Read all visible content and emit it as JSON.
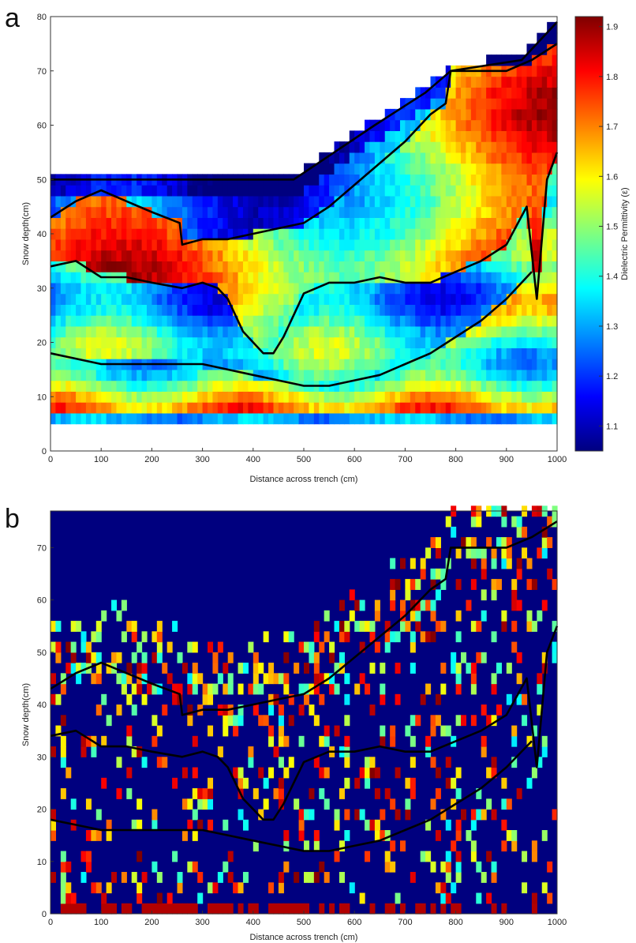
{
  "chart_data": [
    {
      "panel": "a",
      "type": "heatmap",
      "xlabel": "Distance across trench (cm)",
      "ylabel": "Snow depth(cm)",
      "xlim": [
        0,
        1000
      ],
      "ylim": [
        0,
        80
      ],
      "xticks": [
        0,
        100,
        200,
        300,
        400,
        500,
        600,
        700,
        800,
        900,
        1000
      ],
      "yticks": [
        0,
        10,
        20,
        30,
        40,
        50,
        60,
        70,
        80
      ],
      "colorbar": {
        "label": "Dielectric Permittivity (ε)",
        "range": [
          1.05,
          1.92
        ],
        "ticks": [
          1.1,
          1.2,
          1.3,
          1.4,
          1.5,
          1.6,
          1.7,
          1.8,
          1.9
        ],
        "colormap": "jet"
      },
      "grid": false,
      "contours": [
        {
          "name": "snow surface",
          "x": [
            0,
            250,
            480,
            560,
            640,
            740,
            790,
            860,
            930,
            1000
          ],
          "y": [
            50,
            50,
            50,
            55,
            60,
            66,
            70,
            71,
            72,
            79
          ]
        },
        {
          "x": [
            0,
            50,
            100,
            150,
            200,
            255,
            260,
            300,
            350,
            400,
            450,
            500,
            550,
            600,
            650,
            700,
            750,
            780,
            790,
            850,
            900,
            950,
            1000
          ],
          "y": [
            43,
            46,
            48,
            46,
            44,
            42,
            38,
            39,
            39,
            40,
            41,
            42,
            45,
            49,
            53,
            57,
            62,
            64,
            70,
            70,
            70,
            72,
            75
          ]
        },
        {
          "x": [
            0,
            50,
            100,
            150,
            200,
            260,
            300,
            330,
            350,
            380,
            420,
            440,
            460,
            500,
            550,
            600,
            650,
            700,
            750,
            800,
            850,
            900,
            940,
            960,
            980,
            1000
          ],
          "y": [
            34,
            35,
            32,
            32,
            31,
            30,
            31,
            30,
            28,
            22,
            18,
            18,
            21,
            29,
            31,
            31,
            32,
            31,
            31,
            33,
            35,
            38,
            45,
            28,
            50,
            55
          ]
        },
        {
          "x": [
            0,
            50,
            100,
            150,
            200,
            250,
            300,
            350,
            400,
            450,
            500,
            550,
            600,
            650,
            700,
            750,
            800,
            850,
            900,
            950
          ],
          "y": [
            18,
            17,
            16,
            16,
            16,
            16,
            16,
            15,
            14,
            13,
            12,
            12,
            13,
            14,
            16,
            18,
            21,
            24,
            28,
            33
          ]
        }
      ]
    },
    {
      "panel": "b",
      "type": "heatmap",
      "xlabel": "Distance across trench (cm)",
      "ylabel": "Snow depth(cm)",
      "xlim": [
        0,
        1000
      ],
      "ylim": [
        0,
        77
      ],
      "xticks": [
        0,
        100,
        200,
        300,
        400,
        500,
        600,
        700,
        800,
        900,
        1000
      ],
      "yticks": [
        0,
        10,
        20,
        30,
        40,
        50,
        60,
        70
      ],
      "colormap": "jet",
      "grid": false,
      "contours": [
        {
          "x": [
            0,
            50,
            100,
            150,
            200,
            255,
            260,
            300,
            350,
            400,
            450,
            500,
            550,
            600,
            650,
            700,
            750,
            780,
            790,
            850,
            900,
            950,
            1000
          ],
          "y": [
            43,
            46,
            48,
            46,
            44,
            42,
            38,
            39,
            39,
            40,
            41,
            42,
            45,
            49,
            53,
            57,
            62,
            64,
            70,
            70,
            70,
            72,
            75
          ]
        },
        {
          "x": [
            0,
            50,
            100,
            150,
            200,
            260,
            300,
            330,
            350,
            380,
            420,
            440,
            460,
            500,
            550,
            600,
            650,
            700,
            750,
            800,
            850,
            900,
            940,
            960,
            980,
            1000
          ],
          "y": [
            34,
            35,
            32,
            32,
            31,
            30,
            31,
            30,
            28,
            22,
            18,
            18,
            21,
            29,
            31,
            31,
            32,
            31,
            31,
            33,
            35,
            38,
            45,
            28,
            50,
            55
          ]
        },
        {
          "x": [
            0,
            50,
            100,
            150,
            200,
            250,
            300,
            350,
            400,
            450,
            500,
            550,
            600,
            650,
            700,
            750,
            800,
            850,
            900,
            950
          ],
          "y": [
            18,
            17,
            16,
            16,
            16,
            16,
            16,
            15,
            14,
            13,
            12,
            12,
            13,
            14,
            16,
            18,
            21,
            24,
            28,
            33
          ]
        }
      ]
    }
  ],
  "colors": {
    "jet": [
      "#00007f",
      "#0000ff",
      "#007fff",
      "#00ffff",
      "#7fff7f",
      "#ffff00",
      "#ff7f00",
      "#ff0000",
      "#7f0000"
    ],
    "contour": "#000000",
    "background_b": "#00007f"
  }
}
